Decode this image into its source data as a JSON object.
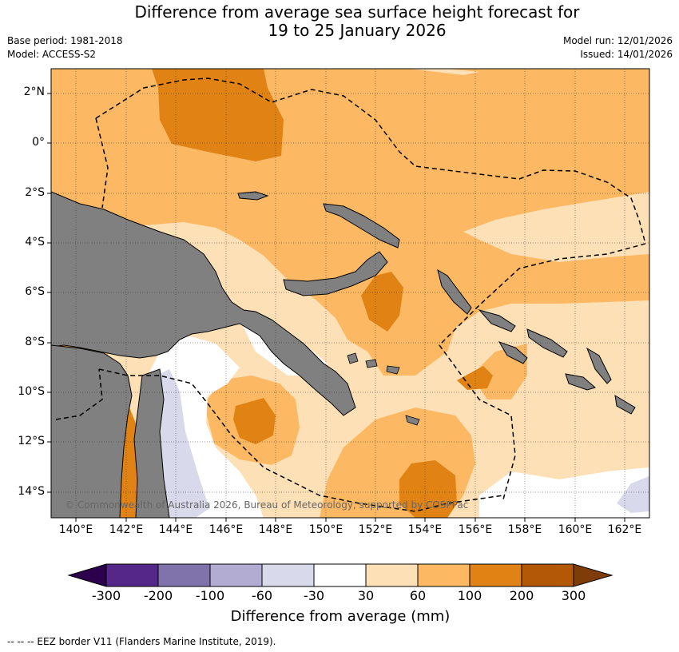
{
  "title_line1": "Difference from average sea surface height forecast for",
  "title_line2": "19 to 25 January 2026",
  "base_period": "Base period: 1981-2018",
  "model": "Model: ACCESS-S2",
  "model_run": "Model run: 12/01/2026",
  "issued": "Issued: 14/01/2026",
  "lat_labels": [
    "2°N",
    "0°",
    "2°S",
    "4°S",
    "6°S",
    "8°S",
    "10°S",
    "12°S",
    "14°S"
  ],
  "lon_labels": [
    "140°E",
    "142°E",
    "144°E",
    "146°E",
    "148°E",
    "150°E",
    "152°E",
    "154°E",
    "156°E",
    "158°E",
    "160°E",
    "162°E"
  ],
  "copyright": "© Commonwealth of Australia 2026, Bureau of Meteorology, supported by COSPPac",
  "colorbar": {
    "ticks": [
      "-300",
      "-200",
      "-100",
      "-60",
      "-30",
      "30",
      "60",
      "100",
      "200",
      "300"
    ],
    "colors": [
      "#2d004b",
      "#542788",
      "#8073ac",
      "#b2abd2",
      "#d8daeb",
      "#ffffff",
      "#fee0b6",
      "#fdb863",
      "#e08214",
      "#b35806",
      "#7f3b08"
    ],
    "label": "Difference from average (mm)"
  },
  "legend_footer": "-- -- -- EEZ border V11 (Flanders Marine Institute, 2019).",
  "map_colors": {
    "land": "#808080",
    "level_30_60": "#fee0b6",
    "level_60_100": "#fdb863",
    "level_100_200": "#e08214",
    "level_neg60_neg30": "#d8daeb",
    "neutral": "#ffffff"
  }
}
